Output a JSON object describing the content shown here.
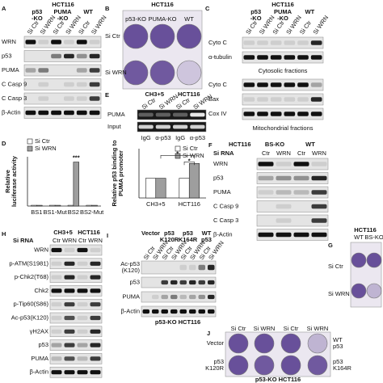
{
  "panels": {
    "A": {
      "label": "A",
      "cell_line": "HCT116",
      "groups": [
        [
          "p53",
          "-KO"
        ],
        [
          "PUMA",
          "-KO"
        ],
        [
          "WT"
        ]
      ],
      "lanes": [
        "Si Ctr",
        "Si WRN",
        "Si Ctr",
        "Si WRN",
        "Si Ctr",
        "Si WRN"
      ],
      "rows": [
        "WRN",
        "p53",
        "PUMA",
        "C Casp 9",
        "C Casp 3",
        "β-Actin"
      ]
    },
    "B": {
      "label": "B",
      "cell_line": "HCT116",
      "columns": [
        "p53-KO",
        "PUMA-KO",
        "WT"
      ],
      "rows": [
        "Si Ctr",
        "Si WRN"
      ]
    },
    "C": {
      "label": "C",
      "cell_line": "HCT116",
      "groups": [
        [
          "p53",
          "-KO"
        ],
        [
          "PUMA",
          "-KO"
        ],
        [
          "WT"
        ]
      ],
      "lanes": [
        "Si Ctr",
        "Si WRN",
        "Si Ctr",
        "Si WRN",
        "Si Ctr",
        "Si WRN"
      ],
      "cytosolic_rows": [
        "Cyto C",
        "α-tubulin"
      ],
      "cytosolic_caption": "Cytosolic fractions",
      "mito_rows": [
        "Cyto C",
        "Bax",
        "Cox IV"
      ],
      "mito_caption": "Mitochondrial fractions"
    },
    "D": {
      "label": "D"
    },
    "E": {
      "label": "E",
      "groups": [
        "CH3+5",
        "HCT116"
      ],
      "lanes": [
        "Si Ctr",
        "Si WRN",
        "Si Ctr",
        "Si WRN"
      ],
      "rows": [
        "PUMA",
        "Input"
      ],
      "antibodies": [
        "IgG",
        "α-p53",
        "IgG",
        "α-p53"
      ]
    },
    "F": {
      "label": "F",
      "cell_line": "HCT116",
      "groups": [
        "BS-KO",
        "WT"
      ],
      "header_label": "Si RNA",
      "lanes": [
        "Ctr",
        "WRN",
        "Ctr",
        "WRN"
      ],
      "rows": [
        "WRN",
        "p53",
        "PUMA",
        "C Casp 9",
        "C Casp 3",
        "β-Actin"
      ]
    },
    "G": {
      "label": "G",
      "cell_line": "HCT116",
      "columns": [
        "WT",
        "BS-KO"
      ],
      "rows": [
        "Si Ctr",
        "Si WRN"
      ]
    },
    "H": {
      "label": "H",
      "header_label": "Si RNA",
      "groups": [
        "CH3+5",
        "HCT116"
      ],
      "lanes": [
        "Ctr",
        "WRN",
        "Ctr",
        "WRN"
      ],
      "rows": [
        "WRN",
        "p-ATM(S1981)",
        "p-Chk2(T68)",
        "Chk2",
        "p-Tip60(S86)",
        "Ac-p53(K120)",
        "γH2AX",
        "p53",
        "PUMA",
        "β-Actin"
      ]
    },
    "I": {
      "label": "I",
      "groups": [
        [
          "Vector"
        ],
        [
          "p53",
          "K120R"
        ],
        [
          "p53",
          "K164R"
        ],
        [
          "WT",
          "p53"
        ]
      ],
      "lanes": [
        "Si Ctr",
        "Si WRN",
        "Si Ctr",
        "Si WRN",
        "Si Ctr",
        "Si WRN",
        "Si Ctr",
        "Si WRN"
      ],
      "rows": [
        [
          "Ac-p53",
          "(K120)"
        ],
        [
          "p53"
        ],
        [
          "PUMA"
        ],
        [
          "β-Actin"
        ]
      ],
      "caption": "p53-KO HCT116"
    },
    "J": {
      "label": "J",
      "lanes": [
        "Si Ctr",
        "Si WRN",
        "Si Ctr",
        "Si WRN"
      ],
      "left_rows": [
        [
          "Vector"
        ],
        [
          "p53",
          "K120R"
        ]
      ],
      "right_rows": [
        [
          "WT",
          "p53"
        ],
        [
          "p53",
          "K164R"
        ]
      ],
      "caption": "p53-KO HCT116"
    }
  },
  "chart_data": [
    {
      "type": "bar",
      "y_label": [
        "Relative",
        "luciferase activity"
      ],
      "categories": [
        "BS1",
        "BS1-Mut",
        "BS2",
        "BS2-Mut"
      ],
      "series": [
        {
          "name": "Si Ctr",
          "color": "#ffffff",
          "values": [
            1,
            1,
            1,
            1
          ]
        },
        {
          "name": "Si WRN",
          "color": "#9e9e9e",
          "values": [
            1,
            1,
            58,
            1
          ]
        }
      ],
      "ylim": [
        0,
        65
      ],
      "annotations": [
        "***"
      ]
    },
    {
      "type": "bar",
      "y_label": [
        "Relative p53 binding to",
        "PUMA promoter"
      ],
      "categories": [
        "CH3+5",
        "HCT116"
      ],
      "series": [
        {
          "name": "Si Ctr",
          "color": "#ffffff",
          "values": [
            1.0,
            1.0
          ]
        },
        {
          "name": "Si WRN",
          "color": "#9e9e9e",
          "values": [
            1.0,
            1.75
          ]
        }
      ],
      "ylim": [
        0,
        2.5
      ],
      "annotations": [
        "*",
        "*"
      ]
    }
  ]
}
